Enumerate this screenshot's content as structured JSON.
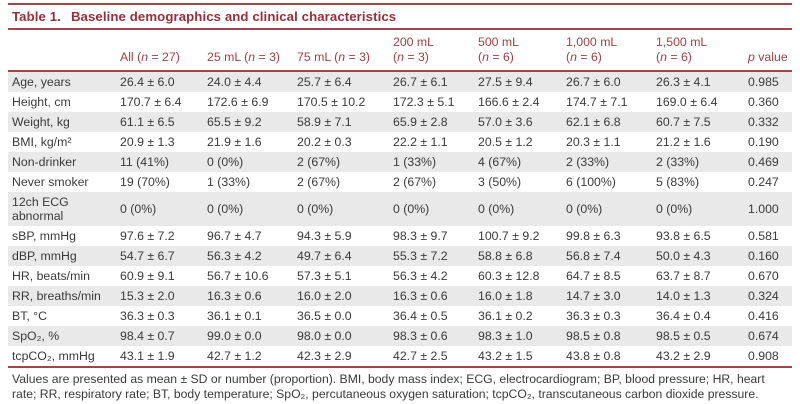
{
  "colors": {
    "accent_maroon": "#9c3a42",
    "rule_maroon": "#a0454d",
    "stripe_gray": "#e9e9e9",
    "body_text": "#3a3a3a"
  },
  "table": {
    "number": "Table 1.",
    "title": "Baseline demographics and clinical characteristics",
    "column_headers": [
      "",
      "All (n = 27)",
      "25 mL (n = 3)",
      "75 mL (n = 3)",
      "200 mL\n(n = 3)",
      "500 mL\n(n = 6)",
      "1,000 mL\n(n = 6)",
      "1,500 mL\n(n = 6)",
      "p value"
    ],
    "rows": [
      {
        "label": "Age, years",
        "values": [
          "26.4 ± 6.0",
          "24.0 ± 4.4",
          "25.7 ± 6.4",
          "26.7 ± 6.1",
          "27.5 ± 9.4",
          "26.7 ± 6.0",
          "26.3 ± 4.1",
          "0.985"
        ]
      },
      {
        "label": "Height, cm",
        "values": [
          "170.7 ± 6.4",
          "172.6 ± 6.9",
          "170.5 ± 10.2",
          "172.3 ± 5.1",
          "166.6 ± 2.4",
          "174.7 ± 7.1",
          "169.0 ± 6.4",
          "0.360"
        ]
      },
      {
        "label": "Weight, kg",
        "values": [
          "61.1 ± 6.5",
          "65.5 ± 9.2",
          "58.9 ± 7.1",
          "65.9 ± 2.8",
          "57.0 ± 3.6",
          "62.1 ± 6.8",
          "60.7 ± 7.5",
          "0.332"
        ]
      },
      {
        "label": "BMI, kg/m²",
        "values": [
          "20.9 ± 1.3",
          "21.9 ± 1.6",
          "20.2 ± 0.3",
          "22.2 ± 1.1",
          "20.5 ± 1.2",
          "20.3 ± 1.1",
          "21.2 ± 1.6",
          "0.190"
        ]
      },
      {
        "label": "Non-drinker",
        "values": [
          "11 (41%)",
          "0 (0%)",
          "2 (67%)",
          "1 (33%)",
          "4 (67%)",
          "2 (33%)",
          "2 (33%)",
          "0.469"
        ]
      },
      {
        "label": "Never smoker",
        "values": [
          "19 (70%)",
          "1 (33%)",
          "2 (67%)",
          "2 (67%)",
          "3 (50%)",
          "6 (100%)",
          "5 (83%)",
          "0.247"
        ]
      },
      {
        "label": "12ch ECG\nabnormal",
        "values": [
          "0 (0%)",
          "0 (0%)",
          "0 (0%)",
          "0 (0%)",
          "0 (0%)",
          "0 (0%)",
          "0 (0%)",
          "1.000"
        ]
      },
      {
        "label": "sBP, mmHg",
        "values": [
          "97.6 ± 7.2",
          "96.7 ± 4.7",
          "94.3 ± 5.9",
          "98.3 ± 9.7",
          "100.7 ± 9.2",
          "99.8 ± 6.3",
          "93.8 ± 6.5",
          "0.581"
        ]
      },
      {
        "label": "dBP, mmHg",
        "values": [
          "54.7 ± 6.7",
          "56.3 ± 4.2",
          "49.7 ± 6.4",
          "55.3 ± 7.2",
          "58.8 ± 6.8",
          "56.8 ± 7.4",
          "50.0 ± 4.3",
          "0.160"
        ]
      },
      {
        "label": "HR, beats/min",
        "values": [
          "60.9 ± 9.1",
          "56.7 ± 10.6",
          "57.3 ± 5.1",
          "56.3 ± 4.2",
          "60.3 ± 12.8",
          "64.7 ± 8.5",
          "63.7 ± 8.7",
          "0.670"
        ]
      },
      {
        "label": "RR, breaths/min",
        "values": [
          "15.3 ± 2.0",
          "16.3 ± 0.6",
          "16.0 ± 2.0",
          "16.3 ± 0.6",
          "16.0 ± 1.8",
          "14.7 ± 3.0",
          "14.0 ± 1.3",
          "0.324"
        ]
      },
      {
        "label": "BT, °C",
        "values": [
          "36.3 ± 0.3",
          "36.1 ± 0.1",
          "36.5 ± 0.0",
          "36.4 ± 0.5",
          "36.1 ± 0.2",
          "36.3 ± 0.3",
          "36.4 ± 0.4",
          "0.416"
        ]
      },
      {
        "label": "SpO₂, %",
        "values": [
          "98.4 ± 0.7",
          "99.0 ± 0.0",
          "98.0 ± 0.0",
          "98.3 ± 0.6",
          "98.3 ± 1.0",
          "98.5 ± 0.8",
          "98.5 ± 0.5",
          "0.674"
        ]
      },
      {
        "label": "tcpCO₂, mmHg",
        "values": [
          "43.1 ± 1.9",
          "42.7 ± 1.2",
          "42.3 ± 2.9",
          "42.7 ± 2.5",
          "43.2 ± 1.5",
          "43.8 ± 0.8",
          "43.2 ± 2.9",
          "0.908"
        ]
      }
    ],
    "footnote": "Values are presented as mean ± SD or number (proportion). BMI, body mass index; ECG, electrocardiogram; BP, blood pressure; HR, heart rate; RR, respiratory rate; BT, body temperature; SpO₂, percutaneous oxygen saturation; tcpCO₂, transcutaneous carbon dioxide pressure."
  }
}
